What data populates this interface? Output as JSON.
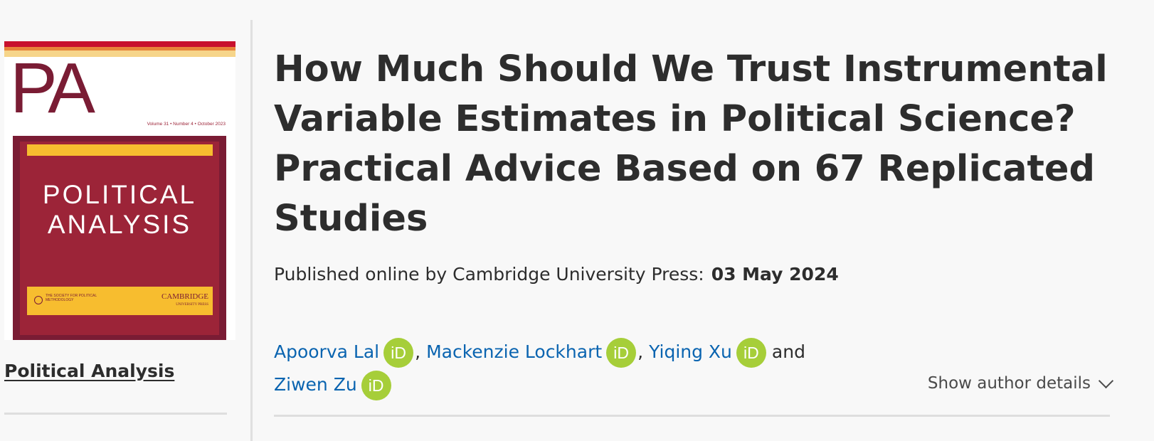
{
  "journal": {
    "name": "Political Analysis",
    "cover": {
      "logo": "PA",
      "volume_line": "Volume 31 • Number 4 • October 2023",
      "title_line1": "POLITICAL",
      "title_line2": "ANALYSIS",
      "society": "THE SOCIETY FOR POLITICAL METHODOLOGY",
      "publisher_mark": "CAMBRIDGE",
      "publisher_sub": "UNIVERSITY PRESS",
      "colors": {
        "maroon": "#7a1c34",
        "red": "#9c2438",
        "yellow": "#f7bd2f"
      }
    }
  },
  "article": {
    "title": "How Much Should We Trust Instrumental Variable Estimates in Political Science? Practical Advice Based on 67 Replicated Studies",
    "published_label": "Published online by Cambridge University Press:",
    "published_date": "03 May 2024"
  },
  "authors": {
    "list": [
      {
        "name": "Apoorva Lal",
        "orcid_icon": "iD"
      },
      {
        "name": "Mackenzie Lockhart",
        "orcid_icon": "iD"
      },
      {
        "name": "Yiqing Xu",
        "orcid_icon": "iD"
      },
      {
        "name": "Ziwen Zu",
        "orcid_icon": "iD"
      }
    ],
    "separator": ",",
    "conjunction": "and",
    "show_details_label": "Show author details"
  },
  "icons": {
    "orcid": "orcid-icon",
    "chevron": "chevron-down-icon"
  },
  "colors": {
    "link": "#0a64b0",
    "orcid": "#a6ce39",
    "text": "#2d2d2d"
  }
}
